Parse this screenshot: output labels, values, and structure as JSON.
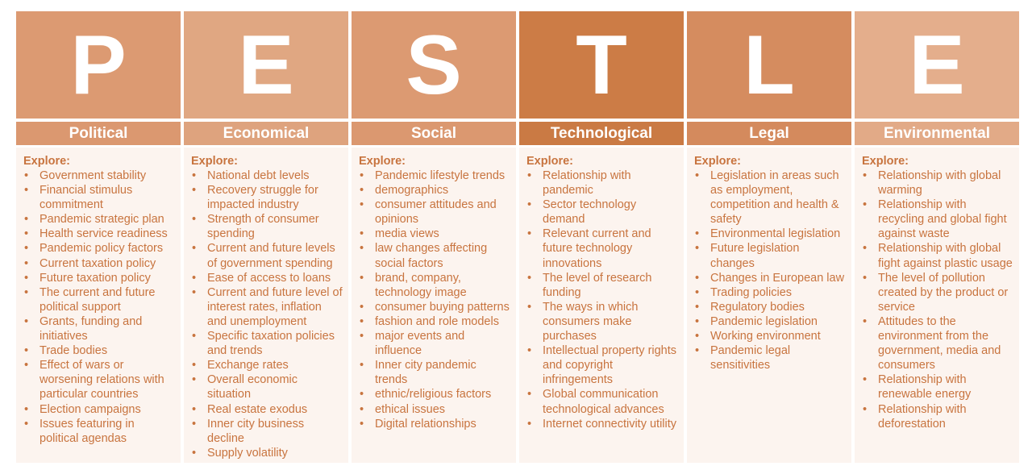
{
  "columns": [
    {
      "letter": "P",
      "title": "Political",
      "explore": "Explore:",
      "color_letter": "#dc9a72",
      "color_title": "#db9870",
      "items": [
        "Government stability",
        "Financial stimulus commitment",
        "Pandemic strategic plan",
        "Health service readiness",
        "Pandemic policy factors",
        "Current taxation policy",
        "Future taxation policy",
        "The current and future political support",
        "Grants, funding and initiatives",
        "Trade bodies",
        "Effect of wars or worsening relations with particular countries",
        "Election campaigns",
        "Issues featuring in political agendas"
      ]
    },
    {
      "letter": "E",
      "title": "Economical",
      "explore": "Explore:",
      "color_letter": "#e0a782",
      "color_title": "#dea37e",
      "items": [
        "National debt levels",
        "Recovery struggle for impacted industry",
        "Strength of consumer spending",
        "Current and future levels of government spending",
        "Ease of access to loans",
        "Current and future level of interest rates, inflation and unemployment",
        "Specific taxation policies and trends",
        "Exchange rates",
        "Overall economic situation",
        "Real estate exodus",
        "Inner city business decline",
        "Supply volatility"
      ]
    },
    {
      "letter": "S",
      "title": "Social",
      "explore": "Explore:",
      "color_letter": "#dc9a72",
      "color_title": "#db9870",
      "items": [
        "Pandemic lifestyle trends",
        "demographics",
        "consumer attitudes and opinions",
        "media views",
        "law changes affecting social factors",
        "brand, company, technology image",
        "consumer buying patterns",
        "fashion and role models",
        "major events and influence",
        "Inner city pandemic trends",
        "ethnic/religious factors",
        "ethical issues",
        "Digital relationships"
      ]
    },
    {
      "letter": "T",
      "title": "Technological",
      "explore": "Explore:",
      "color_letter": "#cc7c46",
      "color_title": "#ca7a44",
      "items": [
        "Relationship with pandemic",
        "Sector technology demand",
        "Relevant current and future technology innovations",
        "The level of research funding",
        "The ways in which consumers make purchases",
        "Intellectual property rights and copyright infringements",
        "Global communication technological advances",
        "Internet connectivity utility"
      ]
    },
    {
      "letter": "L",
      "title": "Legal",
      "explore": "Explore:",
      "color_letter": "#d58c5f",
      "color_title": "#d48a5d",
      "items": [
        "Legislation in areas such as employment, competition and health & safety",
        "Environmental legislation",
        "Future legislation changes",
        "Changes in European law",
        "Trading policies",
        "Regulatory bodies",
        "Pandemic legislation",
        "Working environment",
        "Pandemic legal sensitivities"
      ]
    },
    {
      "letter": "E",
      "title": "Environmental",
      "explore": "Explore:",
      "color_letter": "#e4ae8c",
      "color_title": "#e2aa87",
      "items": [
        "Relationship with global warming",
        "Relationship with recycling and global fight against waste",
        "Relationship with global fight against plastic usage",
        "The level of pollution created by the product or service",
        "Attitudes to the environment from the government, media and consumers",
        "Relationship with renewable energy",
        "Relationship with deforestation"
      ]
    }
  ]
}
